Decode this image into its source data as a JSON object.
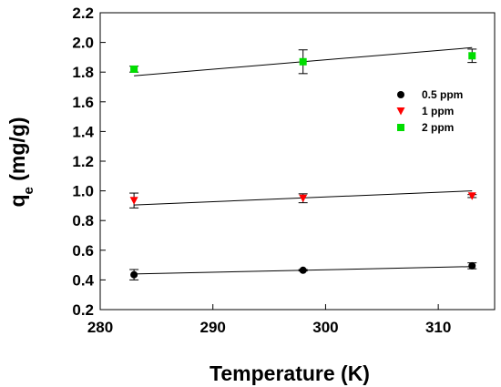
{
  "chart_data": {
    "type": "scatter",
    "xlabel": "Temperature (K)",
    "ylabel": {
      "base": "q",
      "sub": "e",
      "rest": " (mg/g)"
    },
    "xlim": [
      280,
      315
    ],
    "ylim": [
      0.2,
      2.2
    ],
    "xticks": [
      "280",
      "290",
      "300",
      "310"
    ],
    "yticks": [
      "0.2",
      "0.4",
      "0.6",
      "0.8",
      "1.0",
      "1.2",
      "1.4",
      "1.6",
      "1.8",
      "2.0",
      "2.2"
    ],
    "legend_position": "upper-right",
    "series": [
      {
        "name": "0.5 ppm",
        "marker": "circle",
        "color": "#000000",
        "x": [
          283,
          298,
          313
        ],
        "y": [
          0.435,
          0.465,
          0.495
        ],
        "err": [
          0.035,
          0.005,
          0.02
        ],
        "fit": {
          "x": [
            283,
            313
          ],
          "y": [
            0.44,
            0.49
          ]
        }
      },
      {
        "name": "1 ppm",
        "marker": "triangle-down",
        "color": "#ff0000",
        "x": [
          283,
          298,
          313
        ],
        "y": [
          0.935,
          0.95,
          0.965
        ],
        "err": [
          0.05,
          0.03,
          0.01
        ],
        "fit": {
          "x": [
            283,
            313
          ],
          "y": [
            0.905,
            1.0
          ]
        }
      },
      {
        "name": "2 ppm",
        "marker": "square",
        "color": "#00dd00",
        "x": [
          283,
          298,
          313
        ],
        "y": [
          1.82,
          1.87,
          1.91
        ],
        "err": [
          0.02,
          0.08,
          0.045
        ],
        "fit": {
          "x": [
            283,
            313
          ],
          "y": [
            1.775,
            1.965
          ]
        }
      }
    ]
  }
}
